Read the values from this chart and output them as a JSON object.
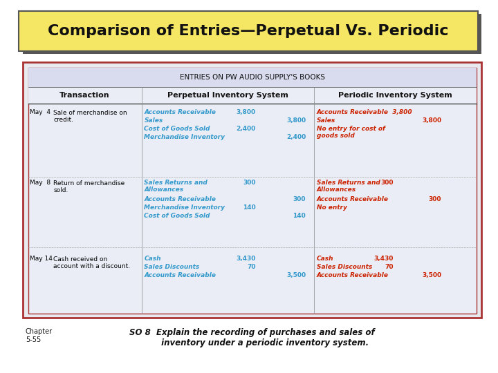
{
  "title": "Comparison of Entries—Perpetual Vs. Periodic",
  "title_bg": "#F5E663",
  "title_shadow": "#555555",
  "table_title": "ENTRIES ON PW AUDIO SUPPLY'S BOOKS",
  "bg_color": "#FFFFFF",
  "table_outer_bg": "#E8EAF0",
  "table_border_outer": "#8888AA",
  "table_border_inner": "#AA3333",
  "header_row": [
    "Transaction",
    "Perpetual Inventory System",
    "Periodic Inventory System"
  ],
  "col_header_color": "#000000",
  "black_text": "#000000",
  "blue_text": "#3399CC",
  "red_text": "#CC2200",
  "footer_chapter": "Chapter\n5-55",
  "footer_so": "SO 8  Explain the recording of purchases and sales of\n         inventory under a periodic inventory system.",
  "rows": [
    {
      "date": "May  4",
      "transaction": "Sale of merchandise on\ncredit.",
      "perpetual": [
        {
          "text": "Accounts Receivable",
          "amount_dr": "3,800",
          "amount_cr": "",
          "color": "blue"
        },
        {
          "text": "Sales",
          "amount_dr": "",
          "amount_cr": "3,800",
          "color": "blue"
        },
        {
          "text": "Cost of Goods Sold",
          "amount_dr": "2,400",
          "amount_cr": "",
          "color": "blue"
        },
        {
          "text": "Merchandise Inventory",
          "amount_dr": "",
          "amount_cr": "2,400",
          "color": "blue"
        }
      ],
      "periodic": [
        {
          "text": "Accounts Receivable  3,800",
          "amount_cr": "",
          "color": "red"
        },
        {
          "text": "Sales",
          "amount_dr": "",
          "amount_cr": "3,800",
          "color": "red"
        },
        {
          "text": "No entry for cost of\ngoods sold",
          "amount_dr": "",
          "amount_cr": "",
          "color": "red"
        }
      ]
    },
    {
      "date": "May  8",
      "transaction": "Return of merchandise\nsold.",
      "perpetual": [
        {
          "text": "Sales Returns and\nAllowances",
          "amount_dr": "300",
          "amount_cr": "",
          "color": "blue"
        },
        {
          "text": "Accounts Receivable",
          "amount_dr": "",
          "amount_cr": "300",
          "color": "blue"
        },
        {
          "text": "Merchandise Inventory",
          "amount_dr": "140",
          "amount_cr": "",
          "color": "blue"
        },
        {
          "text": "Cost of Goods Sold",
          "amount_dr": "",
          "amount_cr": "140",
          "color": "blue"
        }
      ],
      "periodic": [
        {
          "text": "Sales Returns and\nAllowances",
          "amount_dr": "300",
          "amount_cr": "",
          "color": "red"
        },
        {
          "text": "Accounts Receivable",
          "amount_dr": "",
          "amount_cr": "300",
          "color": "red"
        },
        {
          "text": "No entry",
          "amount_dr": "",
          "amount_cr": "",
          "color": "red"
        }
      ]
    },
    {
      "date": "May 14",
      "transaction": "Cash received on\naccount with a discount.",
      "perpetual": [
        {
          "text": "Cash",
          "amount_dr": "3,430",
          "amount_cr": "",
          "color": "blue"
        },
        {
          "text": "Sales Discounts",
          "amount_dr": "70",
          "amount_cr": "",
          "color": "blue"
        },
        {
          "text": "Accounts Receivable",
          "amount_dr": "",
          "amount_cr": "3,500",
          "color": "blue"
        }
      ],
      "periodic": [
        {
          "text": "Cash",
          "amount_dr": "3,430",
          "amount_cr": "",
          "color": "red"
        },
        {
          "text": "Sales Discounts",
          "amount_dr": "70",
          "amount_cr": "",
          "color": "red"
        },
        {
          "text": "Accounts Receivable",
          "amount_dr": "",
          "amount_cr": "3,500",
          "color": "red"
        }
      ]
    }
  ]
}
